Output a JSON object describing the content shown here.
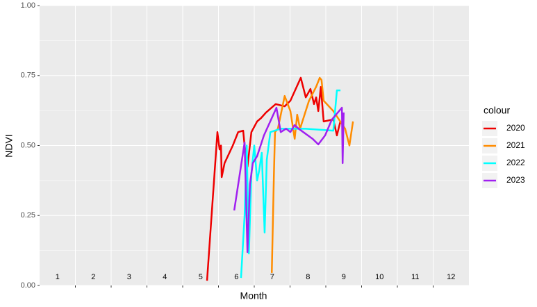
{
  "chart_data": {
    "type": "line",
    "x_label": "Month",
    "y_label": "NDVI",
    "month_labels": [
      "1",
      "2",
      "3",
      "4",
      "5",
      "6",
      "7",
      "8",
      "9",
      "10",
      "11",
      "12"
    ],
    "month_label_y": 0.02,
    "xlim": [
      1,
      13
    ],
    "xticks": [
      2,
      3,
      4,
      5,
      6,
      7,
      8,
      9,
      10,
      11,
      12
    ],
    "ylim": [
      0,
      1
    ],
    "yticks": [
      {
        "value": 0,
        "label": "0.00"
      },
      {
        "value": 0.25,
        "label": "0.25"
      },
      {
        "value": 0.5,
        "label": "0.50"
      },
      {
        "value": 0.75,
        "label": "0.75"
      },
      {
        "value": 1,
        "label": "1.00"
      }
    ],
    "grid": true,
    "legend_title": "colour",
    "legend_position": "right",
    "series": [
      {
        "name": "2020",
        "color": "#ee0000",
        "x": [
          5.68,
          5.97,
          6.03,
          6.07,
          6.09,
          6.17,
          6.4,
          6.55,
          6.69,
          6.73,
          6.81,
          6.92,
          7.08,
          7.19,
          7.33,
          7.6,
          7.85,
          8.01,
          8.3,
          8.44,
          8.57,
          8.67,
          8.73,
          8.79,
          8.86,
          8.94,
          9.21,
          9.31,
          9.41
        ],
        "values": [
          0.017,
          0.548,
          0.486,
          0.5,
          0.387,
          0.437,
          0.5,
          0.548,
          0.553,
          0.5,
          0.424,
          0.548,
          0.586,
          0.598,
          0.618,
          0.648,
          0.64,
          0.66,
          0.742,
          0.672,
          0.702,
          0.648,
          0.672,
          0.623,
          0.709,
          0.586,
          0.593,
          0.536,
          0.588
        ]
      },
      {
        "name": "2021",
        "color": "#ff8c00",
        "x": [
          7.49,
          7.55,
          7.58,
          7.66,
          7.85,
          8.01,
          8.13,
          8.2,
          8.28,
          8.53,
          8.73,
          8.83,
          8.88,
          8.94,
          9.21,
          9.54,
          9.66,
          9.76
        ],
        "values": [
          0.045,
          0.4,
          0.548,
          0.56,
          0.677,
          0.623,
          0.524,
          0.61,
          0.56,
          0.66,
          0.71,
          0.742,
          0.734,
          0.66,
          0.623,
          0.56,
          0.5,
          0.586
        ]
      },
      {
        "name": "2022",
        "color": "#00ffff",
        "x": [
          6.63,
          6.73,
          6.79,
          6.85,
          6.92,
          7.0,
          7.08,
          7.14,
          7.21,
          7.29,
          7.35,
          7.45,
          7.74,
          8.44,
          9.21,
          9.31,
          9.41
        ],
        "values": [
          0.027,
          0.25,
          0.5,
          0.114,
          0.4,
          0.5,
          0.375,
          0.412,
          0.474,
          0.189,
          0.449,
          0.548,
          0.56,
          0.56,
          0.553,
          0.697,
          0.697
        ]
      },
      {
        "name": "2023",
        "color": "#a020f0",
        "x": [
          6.44,
          6.73,
          6.81,
          6.88,
          6.96,
          7.08,
          7.27,
          7.62,
          7.74,
          7.89,
          8.01,
          8.13,
          8.24,
          8.63,
          8.79,
          8.98,
          9.17,
          9.45,
          9.47,
          9.5
        ],
        "values": [
          0.268,
          0.511,
          0.119,
          0.362,
          0.437,
          0.462,
          0.536,
          0.635,
          0.548,
          0.56,
          0.548,
          0.573,
          0.56,
          0.524,
          0.504,
          0.536,
          0.593,
          0.635,
          0.437,
          0.618
        ]
      }
    ]
  }
}
